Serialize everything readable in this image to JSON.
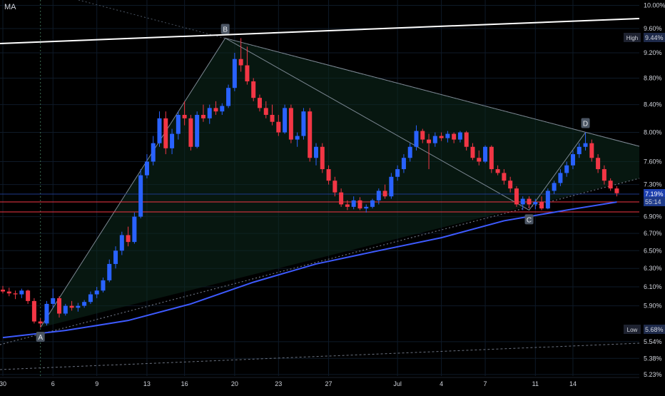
{
  "indicator_label": "MA",
  "chart_data": {
    "type": "candlestick",
    "y_scale": "log",
    "y_unit": "%",
    "x_ticks": [
      "30",
      "6",
      "9",
      "13",
      "16",
      "20",
      "23",
      "27",
      "Jul",
      "4",
      "7",
      "11",
      "14"
    ],
    "y_ticks": [
      "10.00%",
      "9.60%",
      "9.20%",
      "8.80%",
      "8.40%",
      "8.00%",
      "7.60%",
      "7.30%",
      "6.90%",
      "6.70%",
      "6.50%",
      "6.30%",
      "6.10%",
      "5.90%",
      "5.54%",
      "5.38%",
      "5.23%"
    ],
    "price_labels": [
      {
        "tag": "High",
        "value": "9.44%"
      },
      {
        "tag": "Low",
        "value": "5.68%"
      },
      {
        "tag": "",
        "value": "7.19%"
      },
      {
        "tag": "",
        "value": "55:14"
      }
    ],
    "pattern_points": [
      {
        "label": "A",
        "value": 5.68
      },
      {
        "label": "B",
        "value": 9.44
      },
      {
        "label": "C",
        "value": 6.98
      },
      {
        "label": "D",
        "value": 8.0
      }
    ],
    "colors": {
      "up": "#2962ff",
      "down": "#f23645",
      "moving_average": "#3d5afe",
      "background": "#000000",
      "pattern_fill": "#0d2a1e",
      "axis_text": "#d1d4dc"
    },
    "series": [
      {
        "name": "price",
        "kind": "ohlc",
        "values": [
          [
            0,
            6.07,
            6.11,
            6.03,
            6.05
          ],
          [
            1,
            6.05,
            6.09,
            6.0,
            6.03
          ],
          [
            2,
            6.03,
            6.06,
            5.97,
            6.02
          ],
          [
            3,
            6.02,
            6.08,
            5.98,
            6.06
          ],
          [
            4,
            6.06,
            6.07,
            5.92,
            5.95
          ],
          [
            5,
            5.95,
            5.98,
            5.72,
            5.74
          ],
          [
            6,
            5.74,
            5.77,
            5.68,
            5.72
          ],
          [
            7,
            5.72,
            5.95,
            5.7,
            5.92
          ],
          [
            8,
            5.92,
            6.08,
            5.88,
            5.98
          ],
          [
            9,
            5.98,
            6.0,
            5.78,
            5.82
          ],
          [
            10,
            5.82,
            5.92,
            5.8,
            5.9
          ],
          [
            11,
            5.9,
            5.95,
            5.85,
            5.88
          ],
          [
            12,
            5.88,
            5.93,
            5.84,
            5.9
          ],
          [
            13,
            5.9,
            5.96,
            5.88,
            5.94
          ],
          [
            14,
            5.94,
            6.05,
            5.92,
            6.02
          ],
          [
            15,
            6.02,
            6.1,
            5.98,
            6.06
          ],
          [
            16,
            6.06,
            6.2,
            6.04,
            6.17
          ],
          [
            17,
            6.17,
            6.4,
            6.15,
            6.35
          ],
          [
            18,
            6.35,
            6.55,
            6.3,
            6.5
          ],
          [
            19,
            6.5,
            6.72,
            6.45,
            6.68
          ],
          [
            20,
            6.68,
            6.78,
            6.55,
            6.6
          ],
          [
            21,
            6.6,
            6.95,
            6.58,
            6.9
          ],
          [
            22,
            6.9,
            7.5,
            6.88,
            7.42
          ],
          [
            23,
            7.42,
            7.7,
            7.38,
            7.6
          ],
          [
            24,
            7.6,
            7.95,
            7.55,
            7.85
          ],
          [
            25,
            7.85,
            8.3,
            7.8,
            8.2
          ],
          [
            26,
            8.2,
            8.3,
            7.7,
            7.78
          ],
          [
            27,
            7.78,
            8.05,
            7.7,
            7.98
          ],
          [
            28,
            7.98,
            8.3,
            7.9,
            8.25
          ],
          [
            29,
            8.25,
            8.45,
            8.1,
            8.2
          ],
          [
            30,
            8.2,
            8.25,
            7.75,
            7.8
          ],
          [
            31,
            7.8,
            8.3,
            7.78,
            8.25
          ],
          [
            32,
            8.25,
            8.4,
            8.15,
            8.2
          ],
          [
            33,
            8.2,
            8.4,
            8.12,
            8.35
          ],
          [
            34,
            8.35,
            8.45,
            8.25,
            8.3
          ],
          [
            35,
            8.3,
            8.42,
            8.25,
            8.38
          ],
          [
            36,
            8.38,
            8.7,
            8.35,
            8.65
          ],
          [
            37,
            8.65,
            9.2,
            8.6,
            9.1
          ],
          [
            38,
            9.1,
            9.44,
            8.9,
            9.0
          ],
          [
            39,
            9.0,
            9.3,
            8.7,
            8.75
          ],
          [
            40,
            8.75,
            8.8,
            8.45,
            8.5
          ],
          [
            41,
            8.5,
            8.55,
            8.3,
            8.35
          ],
          [
            42,
            8.35,
            8.45,
            8.2,
            8.25
          ],
          [
            43,
            8.25,
            8.4,
            8.1,
            8.15
          ],
          [
            44,
            8.15,
            8.25,
            7.95,
            8.0
          ],
          [
            45,
            8.0,
            8.4,
            7.98,
            8.35
          ],
          [
            46,
            8.35,
            8.4,
            7.85,
            7.9
          ],
          [
            47,
            7.9,
            8.0,
            7.8,
            7.95
          ],
          [
            48,
            7.95,
            8.35,
            7.9,
            8.3
          ],
          [
            49,
            8.3,
            8.35,
            7.6,
            7.65
          ],
          [
            50,
            7.65,
            7.85,
            7.55,
            7.8
          ],
          [
            51,
            7.8,
            7.85,
            7.45,
            7.5
          ],
          [
            52,
            7.5,
            7.55,
            7.3,
            7.35
          ],
          [
            53,
            7.35,
            7.4,
            7.15,
            7.2
          ],
          [
            54,
            7.2,
            7.25,
            7.02,
            7.05
          ],
          [
            55,
            7.05,
            7.1,
            6.98,
            7.02
          ],
          [
            56,
            7.02,
            7.15,
            6.99,
            7.1
          ],
          [
            57,
            7.1,
            7.14,
            6.98,
            7.0
          ],
          [
            58,
            7.0,
            7.05,
            6.95,
            7.02
          ],
          [
            59,
            7.02,
            7.12,
            7.0,
            7.1
          ],
          [
            60,
            7.1,
            7.25,
            7.05,
            7.22
          ],
          [
            61,
            7.22,
            7.3,
            7.12,
            7.15
          ],
          [
            62,
            7.15,
            7.45,
            7.12,
            7.4
          ],
          [
            63,
            7.4,
            7.55,
            7.35,
            7.5
          ],
          [
            64,
            7.5,
            7.7,
            7.45,
            7.65
          ],
          [
            65,
            7.65,
            7.85,
            7.6,
            7.8
          ],
          [
            66,
            7.8,
            8.1,
            7.75,
            8.02
          ],
          [
            67,
            8.02,
            8.05,
            7.85,
            7.9
          ],
          [
            68,
            7.9,
            7.98,
            7.5,
            7.85
          ],
          [
            69,
            7.85,
            8.0,
            7.8,
            7.95
          ],
          [
            70,
            7.95,
            8.0,
            7.88,
            7.92
          ],
          [
            71,
            7.92,
            8.02,
            7.86,
            7.98
          ],
          [
            72,
            7.98,
            8.0,
            7.85,
            7.9
          ],
          [
            73,
            7.9,
            8.02,
            7.86,
            8.0
          ],
          [
            74,
            8.0,
            8.02,
            7.75,
            7.8
          ],
          [
            75,
            7.8,
            7.85,
            7.62,
            7.65
          ],
          [
            76,
            7.65,
            7.75,
            7.55,
            7.6
          ],
          [
            77,
            7.6,
            7.82,
            7.58,
            7.8
          ],
          [
            78,
            7.8,
            7.82,
            7.45,
            7.5
          ],
          [
            79,
            7.5,
            7.55,
            7.42,
            7.45
          ],
          [
            80,
            7.45,
            7.5,
            7.3,
            7.35
          ],
          [
            81,
            7.35,
            7.4,
            7.2,
            7.25
          ],
          [
            82,
            7.25,
            7.28,
            7.02,
            7.05
          ],
          [
            83,
            7.05,
            7.15,
            6.98,
            7.12
          ],
          [
            84,
            7.12,
            7.15,
            7.0,
            7.05
          ],
          [
            85,
            7.05,
            7.12,
            6.99,
            7.08
          ],
          [
            86,
            7.08,
            7.15,
            6.98,
            7.0
          ],
          [
            87,
            7.0,
            7.25,
            6.99,
            7.22
          ],
          [
            88,
            7.22,
            7.35,
            7.18,
            7.32
          ],
          [
            89,
            7.32,
            7.5,
            7.28,
            7.45
          ],
          [
            90,
            7.45,
            7.6,
            7.4,
            7.55
          ],
          [
            91,
            7.55,
            7.75,
            7.5,
            7.7
          ],
          [
            92,
            7.7,
            7.85,
            7.65,
            7.8
          ],
          [
            93,
            7.8,
            8.0,
            7.75,
            7.85
          ],
          [
            94,
            7.85,
            7.9,
            7.6,
            7.65
          ],
          [
            95,
            7.65,
            7.7,
            7.45,
            7.5
          ],
          [
            96,
            7.5,
            7.55,
            7.3,
            7.35
          ],
          [
            97,
            7.35,
            7.38,
            7.22,
            7.25
          ],
          [
            98,
            7.25,
            7.28,
            7.15,
            7.19
          ]
        ]
      },
      {
        "name": "MA",
        "kind": "line",
        "values": [
          [
            0,
            5.58
          ],
          [
            10,
            5.65
          ],
          [
            20,
            5.75
          ],
          [
            30,
            5.92
          ],
          [
            40,
            6.15
          ],
          [
            50,
            6.35
          ],
          [
            60,
            6.5
          ],
          [
            70,
            6.65
          ],
          [
            80,
            6.85
          ],
          [
            90,
            6.98
          ],
          [
            98,
            7.08
          ]
        ]
      }
    ]
  }
}
